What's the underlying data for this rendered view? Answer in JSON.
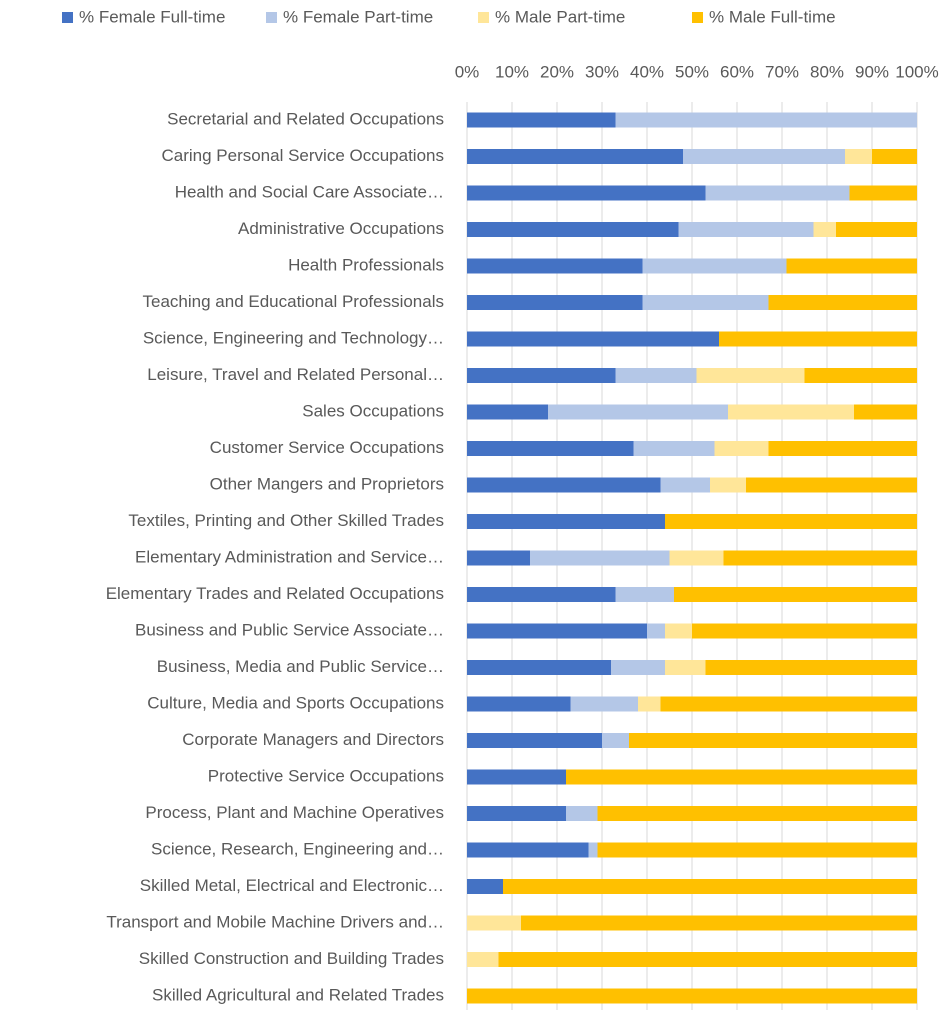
{
  "chart_data": {
    "type": "stacked_bar_horizontal",
    "categories": [
      "Secretarial and Related Occupations",
      "Caring Personal Service Occupations",
      "Health and Social Care Associate…",
      "Administrative Occupations",
      "Health Professionals",
      "Teaching and Educational Professionals",
      "Science, Engineering and Technology…",
      "Leisure, Travel and Related Personal…",
      "Sales Occupations",
      "Customer Service Occupations",
      "Other Mangers and Proprietors",
      "Textiles, Printing and Other Skilled Trades",
      "Elementary Administration and Service…",
      "Elementary Trades and Related Occupations",
      "Business and Public Service Associate…",
      "Business, Media and Public Service…",
      "Culture, Media and Sports Occupations",
      "Corporate Managers and Directors",
      "Protective Service Occupations",
      "Process, Plant and Machine Operatives",
      "Science, Research, Engineering and…",
      "Skilled Metal, Electrical and Electronic…",
      "Transport and Mobile Machine Drivers and…",
      "Skilled Construction and Building Trades",
      "Skilled Agricultural and Related Trades"
    ],
    "series": [
      {
        "name": "% Female Full-time",
        "color": "#4472c4",
        "values": [
          33,
          48,
          53,
          47,
          39,
          39,
          56,
          33,
          18,
          37,
          43,
          44,
          14,
          33,
          40,
          32,
          23,
          30,
          22,
          22,
          27,
          8,
          0,
          0,
          0
        ]
      },
      {
        "name": "% Female Part-time",
        "color": "#b4c7e7",
        "values": [
          67,
          36,
          32,
          30,
          32,
          28,
          0,
          18,
          40,
          18,
          11,
          0,
          31,
          13,
          4,
          12,
          15,
          6,
          0,
          7,
          2,
          0,
          0,
          0,
          0
        ]
      },
      {
        "name": "% Male Part-time",
        "color": "#ffe699",
        "values": [
          0,
          6,
          0,
          5,
          0,
          0,
          0,
          24,
          28,
          12,
          8,
          0,
          12,
          0,
          6,
          9,
          5,
          0,
          0,
          0,
          0,
          0,
          12,
          7,
          0
        ]
      },
      {
        "name": "% Male Full-time",
        "color": "#ffc000",
        "values": [
          0,
          10,
          15,
          18,
          29,
          33,
          44,
          25,
          14,
          33,
          38,
          56,
          43,
          54,
          50,
          47,
          57,
          64,
          78,
          71,
          71,
          92,
          88,
          93,
          100
        ]
      }
    ],
    "xlim": [
      0,
      100
    ],
    "xticks": [
      {
        "value": 0,
        "label": "0%"
      },
      {
        "value": 10,
        "label": "10%"
      },
      {
        "value": 20,
        "label": "20%"
      },
      {
        "value": 30,
        "label": "30%"
      },
      {
        "value": 40,
        "label": "40%"
      },
      {
        "value": 50,
        "label": "50%"
      },
      {
        "value": 60,
        "label": "60%"
      },
      {
        "value": 70,
        "label": "70%"
      },
      {
        "value": 80,
        "label": "80%"
      },
      {
        "value": 90,
        "label": "90%"
      },
      {
        "value": 100,
        "label": "100%"
      }
    ],
    "grid": true,
    "legend": "top"
  }
}
